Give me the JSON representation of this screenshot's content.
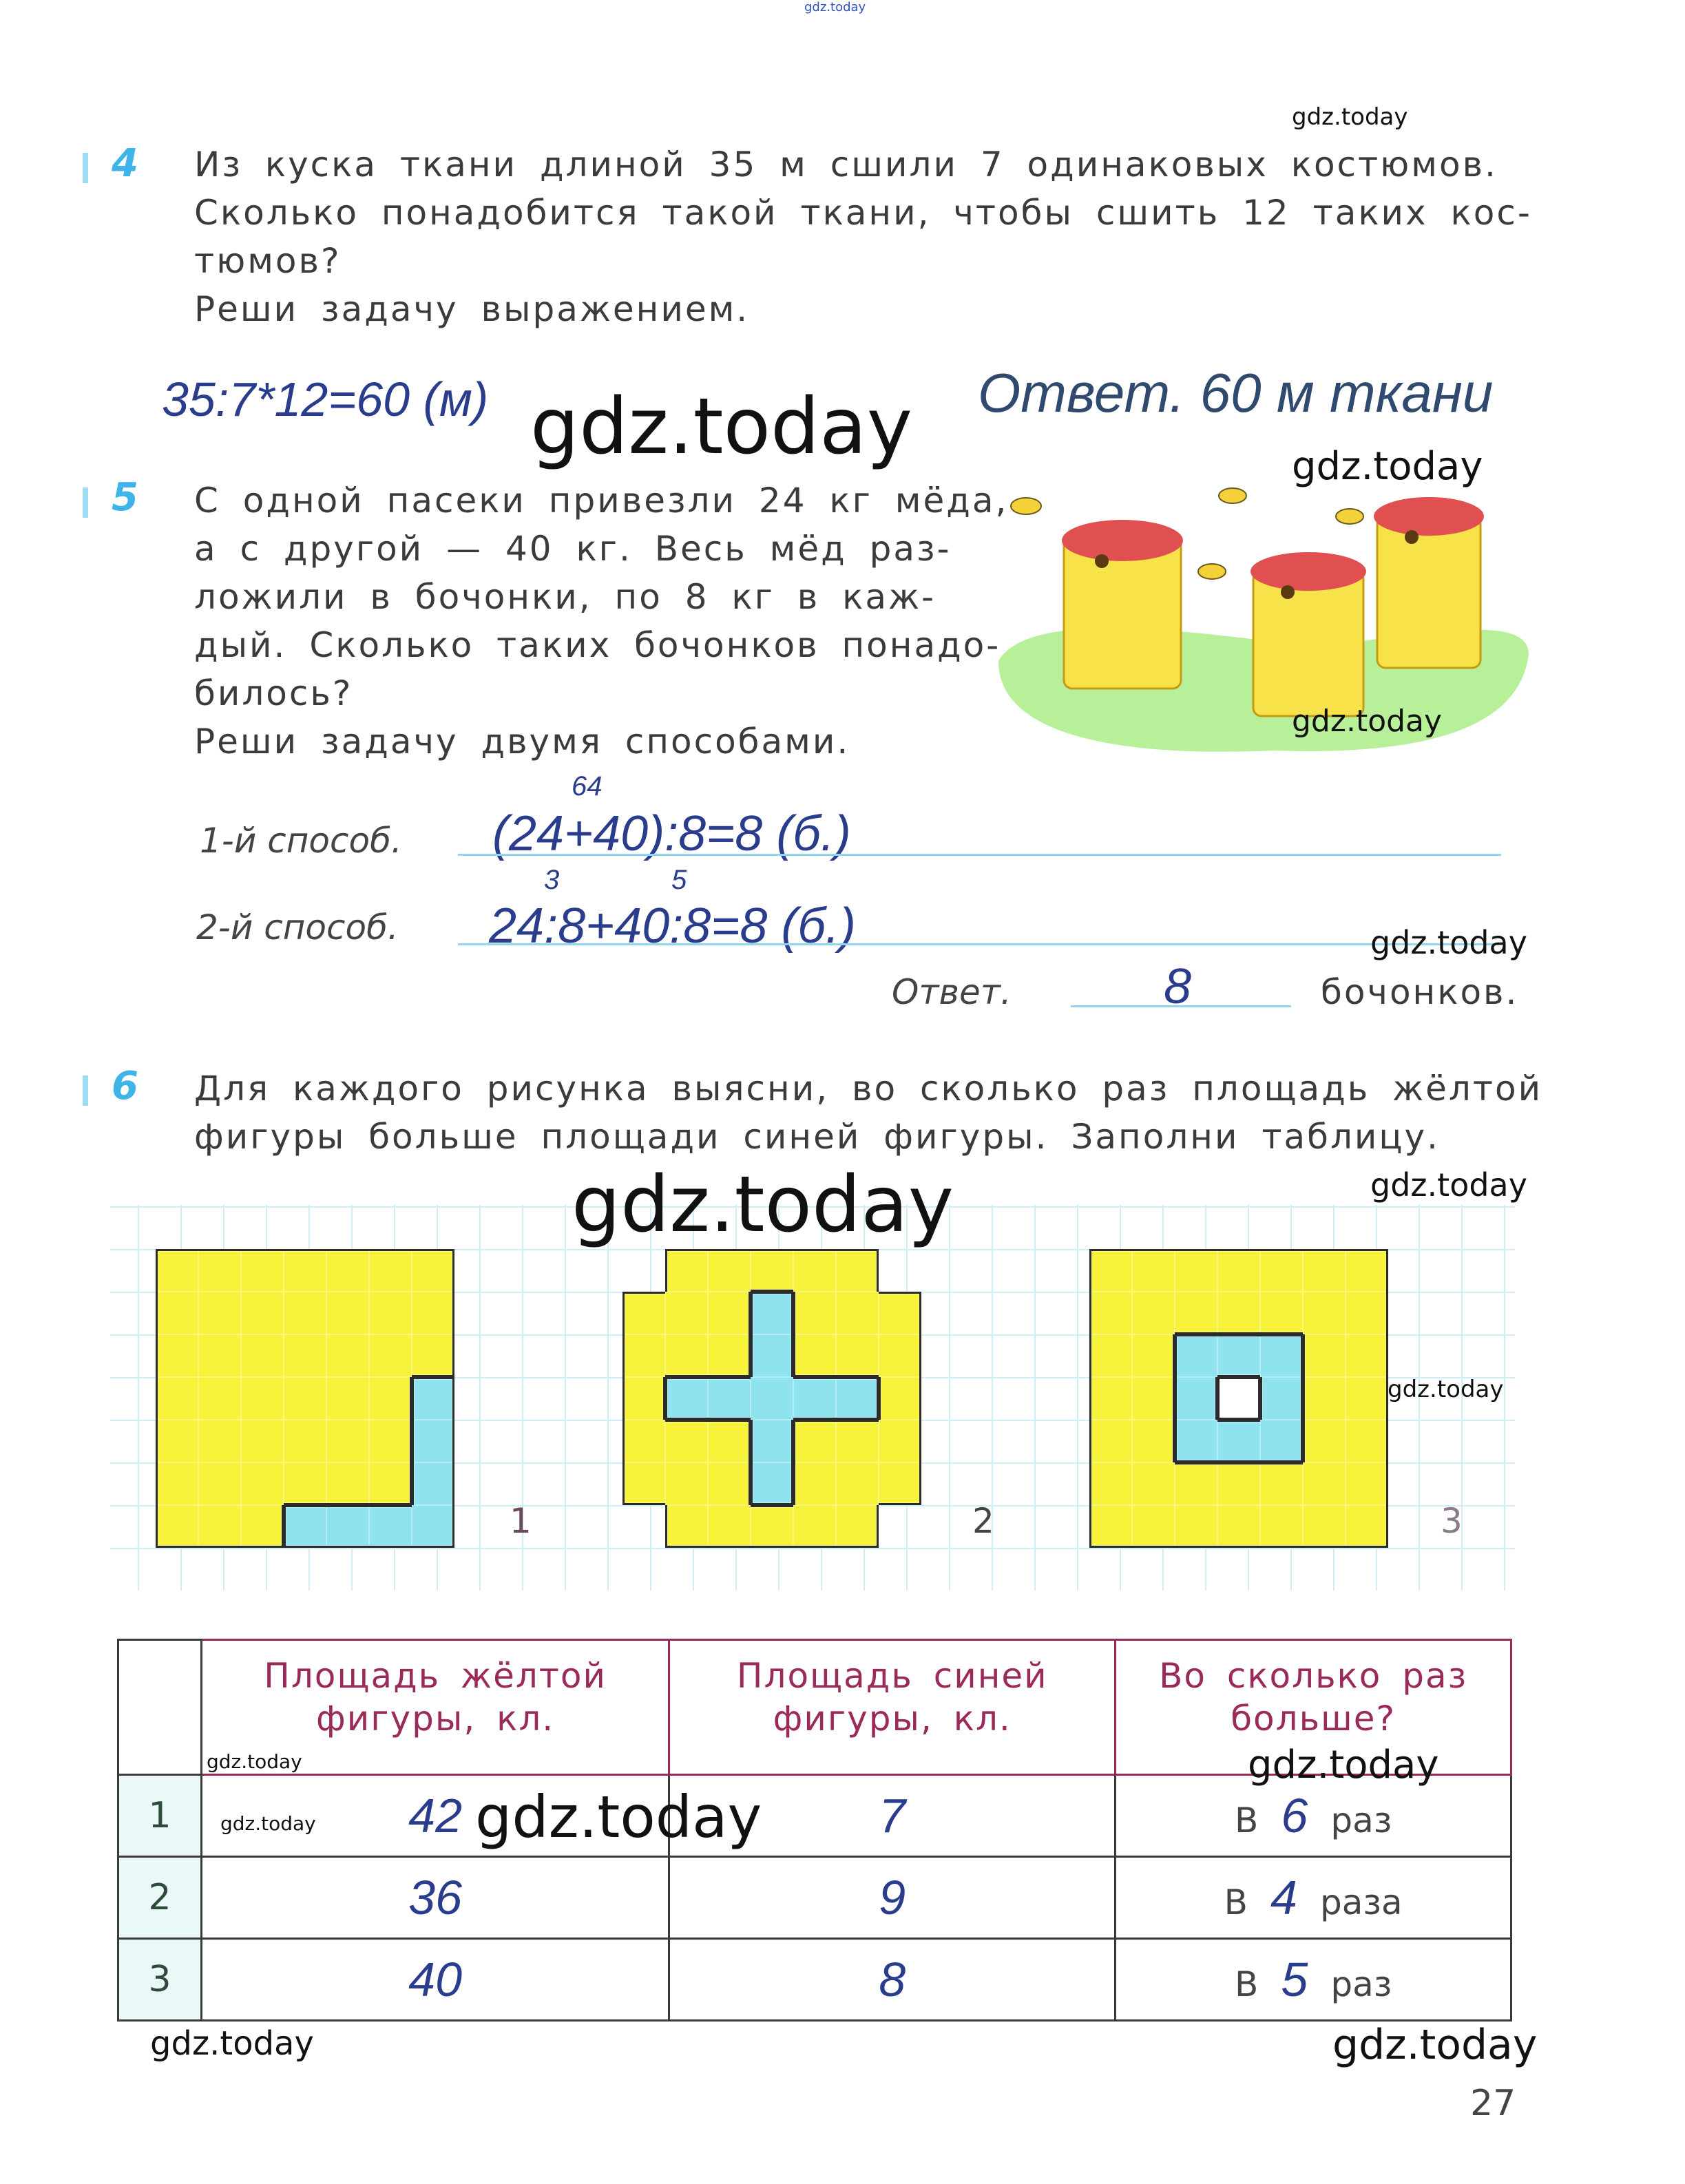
{
  "watermarks": {
    "top": "gdz.today",
    "t4_small": "gdz.today",
    "big1": "gdz.today",
    "t5_right": "gdz.today",
    "t5_img": "gdz.today",
    "t5_answer": "gdz.today",
    "t6_right": "gdz.today",
    "big2": "gdz.today",
    "fig3_right": "gdz.today",
    "table_h1": "gdz.today",
    "table_r1": "gdz.today",
    "table_mid": "gdz.today",
    "table_h3": "gdz.today",
    "bottom_left": "gdz.today",
    "bottom_right": "gdz.today"
  },
  "task4": {
    "number": "4",
    "lines": [
      "Из куска ткани длиной 35 м сшили 7 одинаковых костюмов.",
      "Сколько понадобится такой ткани, чтобы сшить 12 таких кос-",
      "тюмов?",
      "Реши задачу выражением."
    ],
    "solution": "35:7*12=60 (м)",
    "answer": "Ответ. 60 м ткани"
  },
  "task5": {
    "number": "5",
    "lines": [
      "С одной пасеки привезли 24 кг мёда,",
      "а с другой — 40 кг. Весь мёд раз-",
      "ложили в бочонки, по 8 кг в каж-",
      "дый. Сколько таких бочонков понадо-",
      "билось?",
      "Реши задачу двумя способами."
    ],
    "method1_label": "1-й способ.",
    "method1_note": "64",
    "method1": "(24+40):8=8 (б.)",
    "method2_label": "2-й способ.",
    "method2_note_a": "3",
    "method2_note_b": "5",
    "method2": "24:8+40:8=8 (б.)",
    "answer_label": "Ответ.",
    "answer_value": "8",
    "answer_unit": "бочонков.",
    "illustration": "beehives-with-bees"
  },
  "task6": {
    "number": "6",
    "lines": [
      "Для каждого рисунка выясни, во сколько раз площадь жёлтой",
      "фигуры больше площади синей фигуры. Заполни таблицу."
    ],
    "figure_labels": [
      "1",
      "2",
      "3"
    ],
    "colors": {
      "yellow": "#f7f23a",
      "blue": "#8fe3ee",
      "grid": "#cfeef6"
    },
    "table": {
      "headers": [
        "",
        "Площадь жёлтой фигуры, кл.",
        "Площадь синей фигуры, кл.",
        "Во сколько раз больше?"
      ],
      "rows": [
        {
          "n": "1",
          "yellow": "42",
          "blue": "7",
          "pre": "В",
          "times": "6",
          "unit": "раз"
        },
        {
          "n": "2",
          "yellow": "36",
          "blue": "9",
          "pre": "В",
          "times": "4",
          "unit": "раза"
        },
        {
          "n": "3",
          "yellow": "40",
          "blue": "8",
          "pre": "В",
          "times": "5",
          "unit": "раз"
        }
      ]
    }
  },
  "page_number": "27"
}
